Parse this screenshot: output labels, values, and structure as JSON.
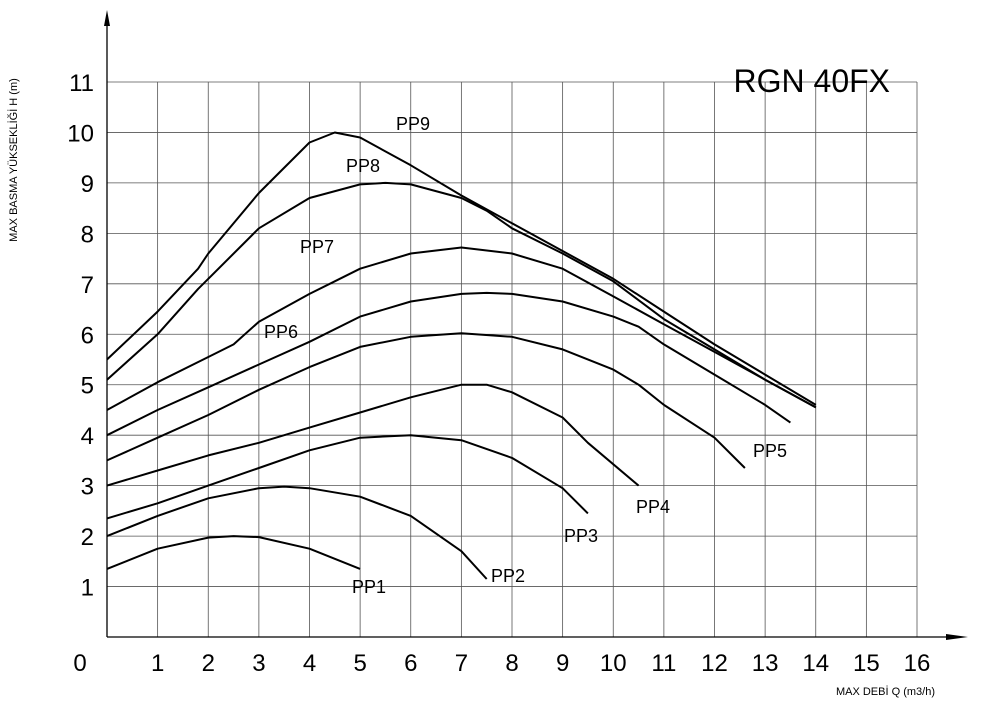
{
  "chart_data": {
    "type": "line",
    "title": "RGN 40FX",
    "xlabel": "MAX DEBİ  Q (m3/h)",
    "ylabel": "MAX BASMA YÜKSEKLİĞİ H (m)",
    "xlim": [
      0,
      16
    ],
    "ylim": [
      0,
      11
    ],
    "grid": true,
    "origin_label": "0",
    "x_ticks": [
      "1",
      "2",
      "3",
      "4",
      "5",
      "6",
      "7",
      "8",
      "9",
      "10",
      "11",
      "12",
      "13",
      "14",
      "15",
      "16"
    ],
    "y_ticks": [
      "1",
      "2",
      "3",
      "4",
      "5",
      "6",
      "7",
      "8",
      "9",
      "10",
      "11"
    ],
    "series": [
      {
        "name": "PP1",
        "points": [
          [
            0,
            1.35
          ],
          [
            1,
            1.75
          ],
          [
            2,
            1.97
          ],
          [
            2.5,
            2.0
          ],
          [
            3,
            1.98
          ],
          [
            4,
            1.75
          ],
          [
            5,
            1.35
          ]
        ]
      },
      {
        "name": "PP2",
        "points": [
          [
            0,
            2.0
          ],
          [
            1,
            2.4
          ],
          [
            2,
            2.75
          ],
          [
            3,
            2.95
          ],
          [
            3.5,
            2.98
          ],
          [
            4,
            2.95
          ],
          [
            5,
            2.78
          ],
          [
            6,
            2.4
          ],
          [
            7,
            1.7
          ],
          [
            7.5,
            1.15
          ]
        ]
      },
      {
        "name": "PP3",
        "points": [
          [
            0,
            2.35
          ],
          [
            1,
            2.65
          ],
          [
            2,
            3.0
          ],
          [
            3,
            3.35
          ],
          [
            4,
            3.7
          ],
          [
            5,
            3.95
          ],
          [
            6,
            4.0
          ],
          [
            7,
            3.9
          ],
          [
            8,
            3.55
          ],
          [
            9,
            2.95
          ],
          [
            9.5,
            2.45
          ]
        ]
      },
      {
        "name": "PP4",
        "points": [
          [
            0,
            3.0
          ],
          [
            1,
            3.3
          ],
          [
            2,
            3.6
          ],
          [
            3,
            3.85
          ],
          [
            4,
            4.15
          ],
          [
            5,
            4.45
          ],
          [
            6,
            4.75
          ],
          [
            7,
            5.0
          ],
          [
            7.5,
            5.0
          ],
          [
            8,
            4.85
          ],
          [
            9,
            4.35
          ],
          [
            9.5,
            3.85
          ],
          [
            10.5,
            3.0
          ]
        ]
      },
      {
        "name": "PP5",
        "points": [
          [
            0,
            3.5
          ],
          [
            1,
            3.95
          ],
          [
            2,
            4.4
          ],
          [
            3,
            4.9
          ],
          [
            4,
            5.35
          ],
          [
            5,
            5.75
          ],
          [
            6,
            5.95
          ],
          [
            7,
            6.02
          ],
          [
            8,
            5.95
          ],
          [
            9,
            5.7
          ],
          [
            10,
            5.3
          ],
          [
            10.5,
            5.0
          ],
          [
            11,
            4.6
          ],
          [
            12,
            3.95
          ],
          [
            12.6,
            3.35
          ]
        ]
      },
      {
        "name": "PP6",
        "points": [
          [
            0,
            4.0
          ],
          [
            1,
            4.5
          ],
          [
            2,
            4.95
          ],
          [
            3,
            5.4
          ],
          [
            4,
            5.85
          ],
          [
            5,
            6.35
          ],
          [
            6,
            6.65
          ],
          [
            7,
            6.8
          ],
          [
            7.5,
            6.82
          ],
          [
            8,
            6.8
          ],
          [
            9,
            6.65
          ],
          [
            10,
            6.35
          ],
          [
            10.5,
            6.15
          ],
          [
            11,
            5.8
          ],
          [
            12,
            5.2
          ],
          [
            13,
            4.6
          ],
          [
            13.5,
            4.25
          ]
        ]
      },
      {
        "name": "PP7",
        "points": [
          [
            0,
            4.5
          ],
          [
            1,
            5.05
          ],
          [
            2,
            5.55
          ],
          [
            2.5,
            5.8
          ],
          [
            3,
            6.25
          ],
          [
            4,
            6.8
          ],
          [
            4.5,
            7.05
          ],
          [
            5,
            7.3
          ],
          [
            6,
            7.6
          ],
          [
            7,
            7.72
          ],
          [
            8,
            7.6
          ],
          [
            9,
            7.3
          ],
          [
            10,
            6.75
          ],
          [
            11,
            6.2
          ],
          [
            12,
            5.65
          ],
          [
            13,
            5.1
          ],
          [
            14,
            4.55
          ]
        ]
      },
      {
        "name": "PP8",
        "points": [
          [
            0,
            5.1
          ],
          [
            1,
            6.0
          ],
          [
            1.8,
            6.9
          ],
          [
            2,
            7.1
          ],
          [
            2.7,
            7.8
          ],
          [
            3,
            8.1
          ],
          [
            4,
            8.7
          ],
          [
            5,
            8.97
          ],
          [
            5.5,
            9.0
          ],
          [
            6,
            8.97
          ],
          [
            7,
            8.7
          ],
          [
            7.5,
            8.45
          ],
          [
            8,
            8.1
          ],
          [
            9,
            7.6
          ],
          [
            10,
            7.05
          ],
          [
            11,
            6.3
          ],
          [
            12,
            5.7
          ],
          [
            13,
            5.1
          ],
          [
            14,
            4.55
          ]
        ]
      },
      {
        "name": "PP9",
        "points": [
          [
            0,
            5.5
          ],
          [
            1,
            6.45
          ],
          [
            1.8,
            7.3
          ],
          [
            2,
            7.6
          ],
          [
            3,
            8.8
          ],
          [
            4,
            9.8
          ],
          [
            4.5,
            10.0
          ],
          [
            5,
            9.9
          ],
          [
            6,
            9.35
          ],
          [
            7,
            8.75
          ],
          [
            8,
            8.2
          ],
          [
            9,
            7.65
          ],
          [
            10,
            7.1
          ],
          [
            11,
            6.45
          ],
          [
            12,
            5.8
          ],
          [
            13,
            5.2
          ],
          [
            14,
            4.6
          ]
        ]
      }
    ]
  }
}
